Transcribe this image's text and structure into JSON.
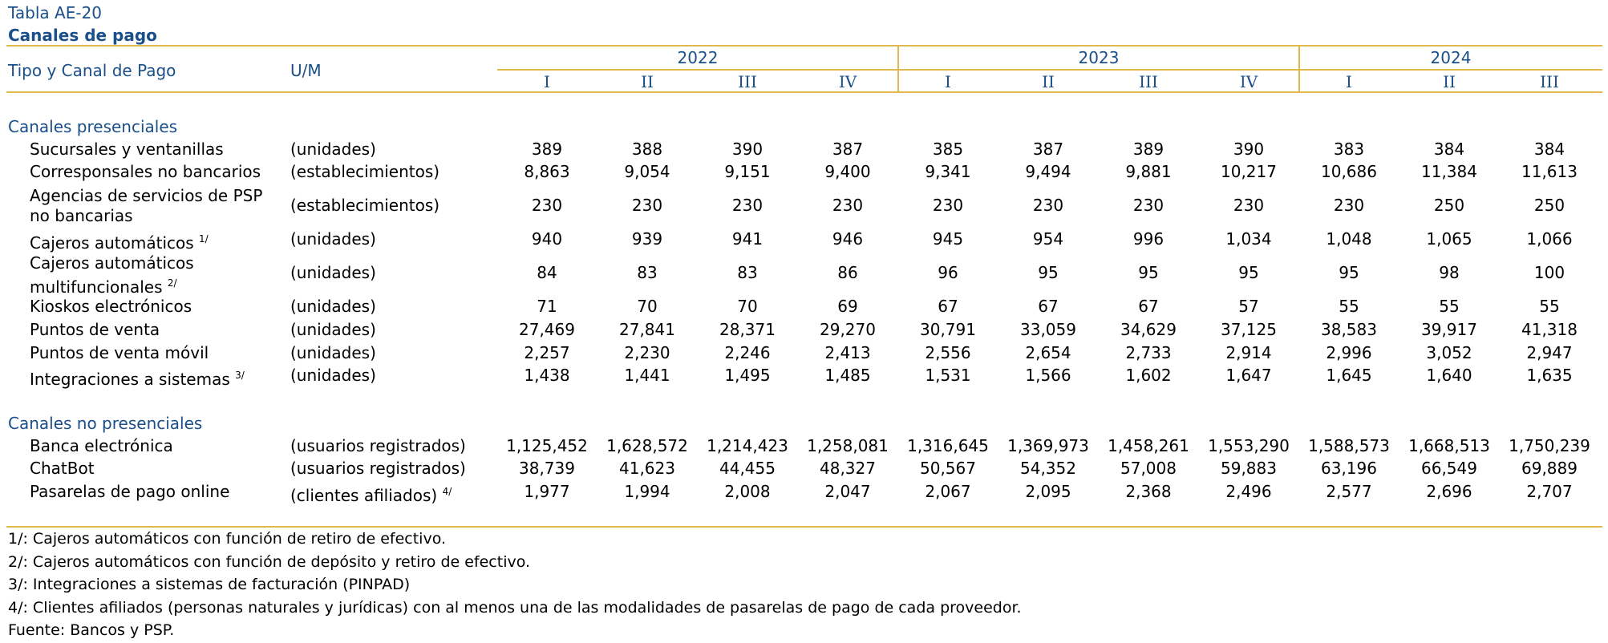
{
  "table": {
    "label": "Tabla AE-20",
    "title": "Canales de pago",
    "col_header_type": "Tipo y Canal de Pago",
    "col_header_unit": "U/M",
    "years": [
      {
        "label": "2022",
        "quarters": [
          "I",
          "II",
          "III",
          "IV"
        ]
      },
      {
        "label": "2023",
        "quarters": [
          "I",
          "II",
          "III",
          "IV"
        ]
      },
      {
        "label": "2024",
        "quarters": [
          "I",
          "II",
          "III"
        ]
      }
    ],
    "sections": [
      {
        "title": "Canales presenciales",
        "rows": [
          {
            "label": "Sucursales y ventanillas",
            "note": "",
            "unit": "(unidades)",
            "values": [
              "389",
              "388",
              "390",
              "387",
              "385",
              "387",
              "389",
              "390",
              "383",
              "384",
              "384"
            ]
          },
          {
            "label": "Corresponsales no bancarios",
            "note": "",
            "unit": "(establecimientos)",
            "values": [
              "8,863",
              "9,054",
              "9,151",
              "9,400",
              "9,341",
              "9,494",
              "9,881",
              "10,217",
              "10,686",
              "11,384",
              "11,613"
            ]
          },
          {
            "label": "Agencias de servicios de PSP no bancarias",
            "note": "",
            "unit": "(establecimientos)",
            "values": [
              "230",
              "230",
              "230",
              "230",
              "230",
              "230",
              "230",
              "230",
              "230",
              "250",
              "250"
            ]
          },
          {
            "label": "Cajeros automáticos",
            "note": "1/",
            "unit": "(unidades)",
            "values": [
              "940",
              "939",
              "941",
              "946",
              "945",
              "954",
              "996",
              "1,034",
              "1,048",
              "1,065",
              "1,066"
            ]
          },
          {
            "label": "Cajeros automáticos multifuncionales",
            "note": "2/",
            "unit": "(unidades)",
            "values": [
              "84",
              "83",
              "83",
              "86",
              "96",
              "95",
              "95",
              "95",
              "95",
              "98",
              "100"
            ]
          },
          {
            "label": "Kioskos electrónicos",
            "note": "",
            "unit": "(unidades)",
            "values": [
              "71",
              "70",
              "70",
              "69",
              "67",
              "67",
              "67",
              "57",
              "55",
              "55",
              "55"
            ]
          },
          {
            "label": "Puntos de venta",
            "note": "",
            "unit": "(unidades)",
            "values": [
              "27,469",
              "27,841",
              "28,371",
              "29,270",
              "30,791",
              "33,059",
              "34,629",
              "37,125",
              "38,583",
              "39,917",
              "41,318"
            ]
          },
          {
            "label": "Puntos de venta móvil",
            "note": "",
            "unit": "(unidades)",
            "values": [
              "2,257",
              "2,230",
              "2,246",
              "2,413",
              "2,556",
              "2,654",
              "2,733",
              "2,914",
              "2,996",
              "3,052",
              "2,947"
            ]
          },
          {
            "label": "Integraciones a sistemas",
            "note": "3/",
            "unit": "(unidades)",
            "values": [
              "1,438",
              "1,441",
              "1,495",
              "1,485",
              "1,531",
              "1,566",
              "1,602",
              "1,647",
              "1,645",
              "1,640",
              "1,635"
            ]
          }
        ]
      },
      {
        "title": "Canales no presenciales",
        "rows": [
          {
            "label": "Banca electrónica",
            "note": "",
            "unit": "(usuarios registrados)",
            "values": [
              "1,125,452",
              "1,628,572",
              "1,214,423",
              "1,258,081",
              "1,316,645",
              "1,369,973",
              "1,458,261",
              "1,553,290",
              "1,588,573",
              "1,668,513",
              "1,750,239"
            ]
          },
          {
            "label": "ChatBot",
            "note": "",
            "unit": "(usuarios registrados)",
            "values": [
              "38,739",
              "41,623",
              "44,455",
              "48,327",
              "50,567",
              "54,352",
              "57,008",
              "59,883",
              "63,196",
              "66,549",
              "69,889"
            ]
          },
          {
            "label": "Pasarelas de pago online",
            "note": "",
            "unit": "(clientes afiliados)",
            "unit_note": "4/",
            "values": [
              "1,977",
              "1,994",
              "2,008",
              "2,047",
              "2,067",
              "2,095",
              "2,368",
              "2,496",
              "2,577",
              "2,696",
              "2,707"
            ]
          }
        ]
      }
    ],
    "footnotes": [
      "1/: Cajeros automáticos con función de retiro de efectivo.",
      "2/: Cajeros automáticos con función de depósito y retiro de efectivo.",
      "3/: Integraciones a sistemas de facturación (PINPAD)",
      "4/: Clientes afiliados (personas naturales y jurídicas) con al menos una de las modalidades de pasarelas de pago de cada proveedor.",
      "Fuente: Bancos y PSP."
    ]
  },
  "colors": {
    "accent_rule": "#e1b84a",
    "header_text": "#1a4f8a"
  }
}
